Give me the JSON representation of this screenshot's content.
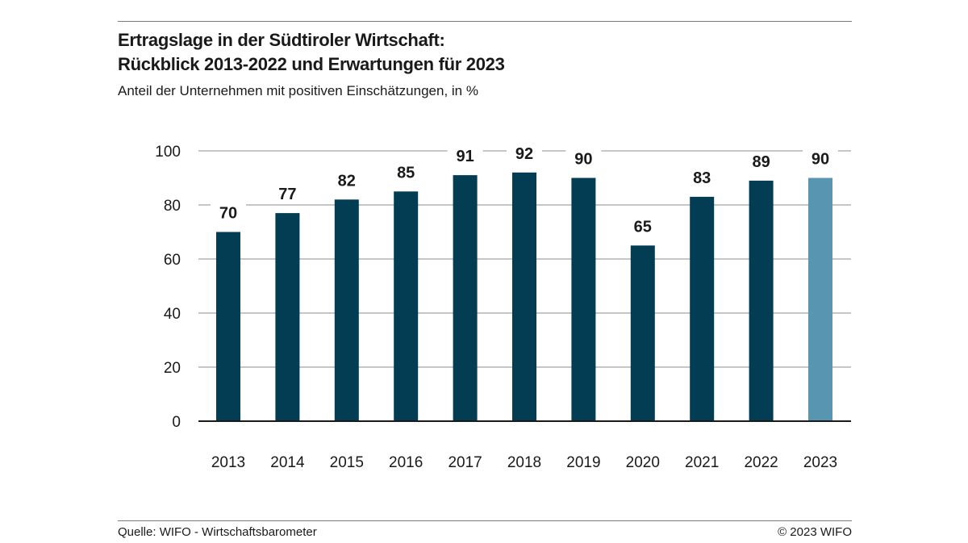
{
  "chart_data": {
    "type": "bar",
    "title": "Ertragslage in der Südtiroler Wirtschaft:",
    "title_line2": "Rückblick 2013-2022 und Erwartungen für 2023",
    "subtitle": "Anteil der Unternehmen mit positiven Einschätzungen, in %",
    "categories": [
      "2013",
      "2014",
      "2015",
      "2016",
      "2017",
      "2018",
      "2019",
      "2020",
      "2021",
      "2022",
      "2023"
    ],
    "values": [
      70,
      77,
      82,
      85,
      91,
      92,
      90,
      65,
      83,
      89,
      90
    ],
    "data_labels": [
      "70",
      "77",
      "82",
      "85",
      "91",
      "92",
      "90",
      "65",
      "83",
      "89",
      "90"
    ],
    "yticks": [
      0,
      20,
      40,
      60,
      80,
      100
    ],
    "ytick_labels": [
      "0",
      "20",
      "40",
      "60",
      "80",
      "100"
    ],
    "ylim": [
      0,
      100
    ],
    "grid": true,
    "colors": {
      "actual": "#023d54",
      "expectation": "#5795b0",
      "grid": "#8c8c8c",
      "axis": "#1a1a1a"
    },
    "highlight_categories": [
      "2023"
    ]
  },
  "footer": {
    "source": "Quelle: WIFO - Wirtschaftsbarometer",
    "copyright": "© 2023 WIFO"
  }
}
